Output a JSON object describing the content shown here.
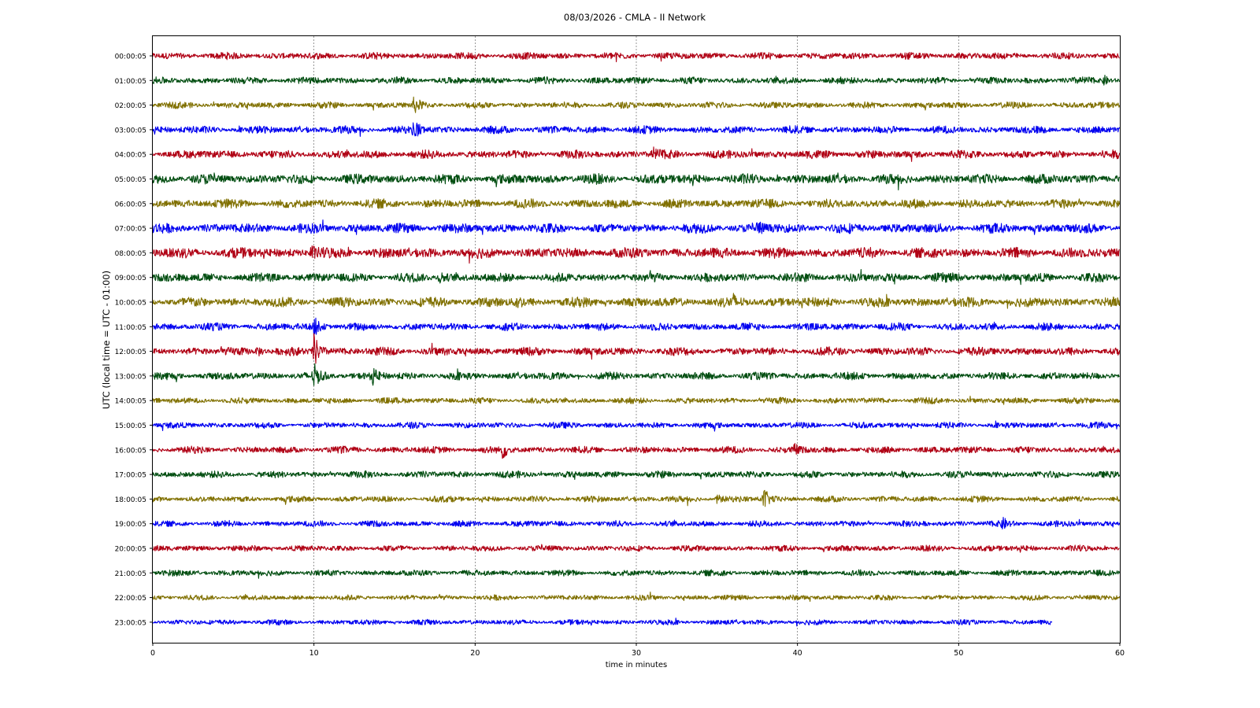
{
  "chart_data": {
    "type": "line",
    "title": "08/03/2026 - CMLA - II Network",
    "xlabel": "time in minutes",
    "ylabel": "UTC (local time = UTC - 01:00)",
    "xlim": [
      0,
      60
    ],
    "x_ticks": [
      "0",
      "10",
      "20",
      "30",
      "40",
      "50",
      "60"
    ],
    "grid": "vertical",
    "series_colors": [
      "#b00014",
      "#004d10",
      "#807000",
      "#0000f0"
    ],
    "rows": [
      {
        "label": "00:00:05",
        "amp": 0.45,
        "end": 60,
        "events": []
      },
      {
        "label": "01:00:05",
        "amp": 0.45,
        "end": 60,
        "events": [
          {
            "t": 59,
            "a": 0.8
          }
        ]
      },
      {
        "label": "02:00:05",
        "amp": 0.42,
        "end": 60,
        "events": [
          {
            "t": 16.2,
            "a": 1.2
          }
        ]
      },
      {
        "label": "03:00:05",
        "amp": 0.5,
        "end": 60,
        "events": [
          {
            "t": 16.2,
            "a": 1.8
          }
        ]
      },
      {
        "label": "04:00:05",
        "amp": 0.55,
        "end": 60,
        "events": [
          {
            "t": 31,
            "a": 0.9
          }
        ]
      },
      {
        "label": "05:00:05",
        "amp": 0.65,
        "end": 60,
        "events": []
      },
      {
        "label": "06:00:05",
        "amp": 0.6,
        "end": 60,
        "events": []
      },
      {
        "label": "07:00:05",
        "amp": 0.65,
        "end": 60,
        "events": [
          {
            "t": 37.5,
            "a": 0.9
          }
        ]
      },
      {
        "label": "08:00:05",
        "amp": 0.7,
        "end": 60,
        "events": [
          {
            "t": 9.8,
            "a": 1.0
          }
        ]
      },
      {
        "label": "09:00:05",
        "amp": 0.6,
        "end": 60,
        "events": [
          {
            "t": 17.8,
            "a": 0.9
          }
        ]
      },
      {
        "label": "10:00:05",
        "amp": 0.65,
        "end": 60,
        "events": [
          {
            "t": 22.5,
            "a": 0.9
          },
          {
            "t": 36,
            "a": 0.8
          }
        ]
      },
      {
        "label": "11:00:05",
        "amp": 0.5,
        "end": 60,
        "events": [
          {
            "t": 10,
            "a": 1.4
          }
        ]
      },
      {
        "label": "12:00:05",
        "amp": 0.55,
        "end": 60,
        "events": [
          {
            "t": 10,
            "a": 2.6
          },
          {
            "t": 6.5,
            "a": 0.8
          }
        ]
      },
      {
        "label": "13:00:05",
        "amp": 0.5,
        "end": 60,
        "events": [
          {
            "t": 13.6,
            "a": 1.1
          },
          {
            "t": 10,
            "a": 1.6
          }
        ]
      },
      {
        "label": "14:00:05",
        "amp": 0.4,
        "end": 60,
        "events": []
      },
      {
        "label": "15:00:05",
        "amp": 0.4,
        "end": 60,
        "events": []
      },
      {
        "label": "16:00:05",
        "amp": 0.45,
        "end": 60,
        "events": [
          {
            "t": 21.7,
            "a": 1.2
          },
          {
            "t": 39.8,
            "a": 0.8
          }
        ]
      },
      {
        "label": "17:00:05",
        "amp": 0.45,
        "end": 60,
        "events": []
      },
      {
        "label": "18:00:05",
        "amp": 0.4,
        "end": 60,
        "events": [
          {
            "t": 37.9,
            "a": 1.8
          },
          {
            "t": 35,
            "a": 0.7
          }
        ]
      },
      {
        "label": "19:00:05",
        "amp": 0.4,
        "end": 60,
        "events": [
          {
            "t": 52.7,
            "a": 0.7
          }
        ]
      },
      {
        "label": "20:00:05",
        "amp": 0.4,
        "end": 60,
        "events": []
      },
      {
        "label": "21:00:05",
        "amp": 0.4,
        "end": 60,
        "events": []
      },
      {
        "label": "22:00:05",
        "amp": 0.35,
        "end": 60,
        "events": []
      },
      {
        "label": "23:00:05",
        "amp": 0.35,
        "end": 55.8,
        "events": []
      }
    ]
  }
}
